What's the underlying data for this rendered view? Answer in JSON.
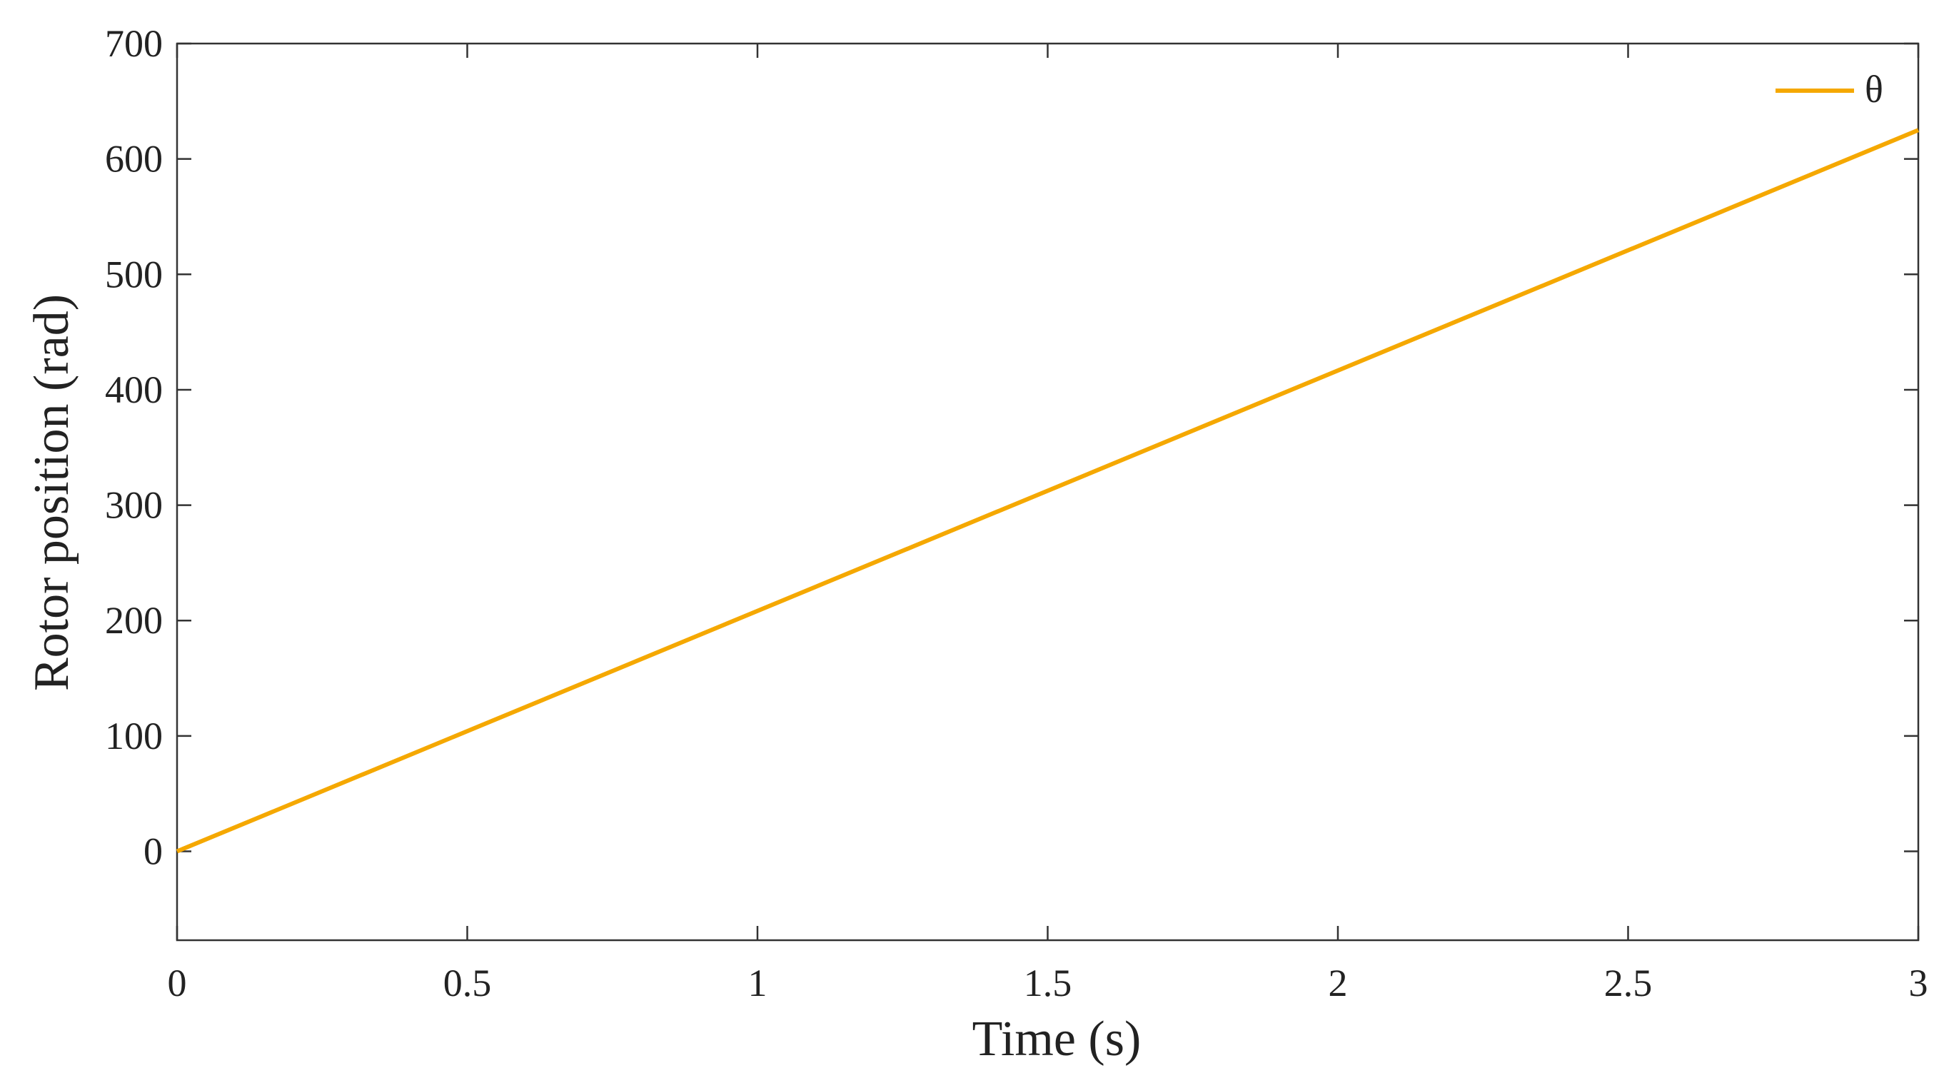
{
  "chart_data": {
    "type": "line",
    "x_label": "Time (s)",
    "y_label": "Rotor position (rad)",
    "xlim": [
      0,
      3
    ],
    "xticks": [
      0,
      0.5,
      1,
      1.5,
      2,
      2.5,
      3
    ],
    "ylim": [
      -77,
      700
    ],
    "yticks": [
      0,
      100,
      200,
      300,
      400,
      500,
      600,
      700
    ],
    "x": [
      0,
      3
    ],
    "series": [
      {
        "name": "θ",
        "color": "#f5a800",
        "values": [
          0,
          625
        ]
      }
    ],
    "legend": "upper right",
    "grid": false
  }
}
